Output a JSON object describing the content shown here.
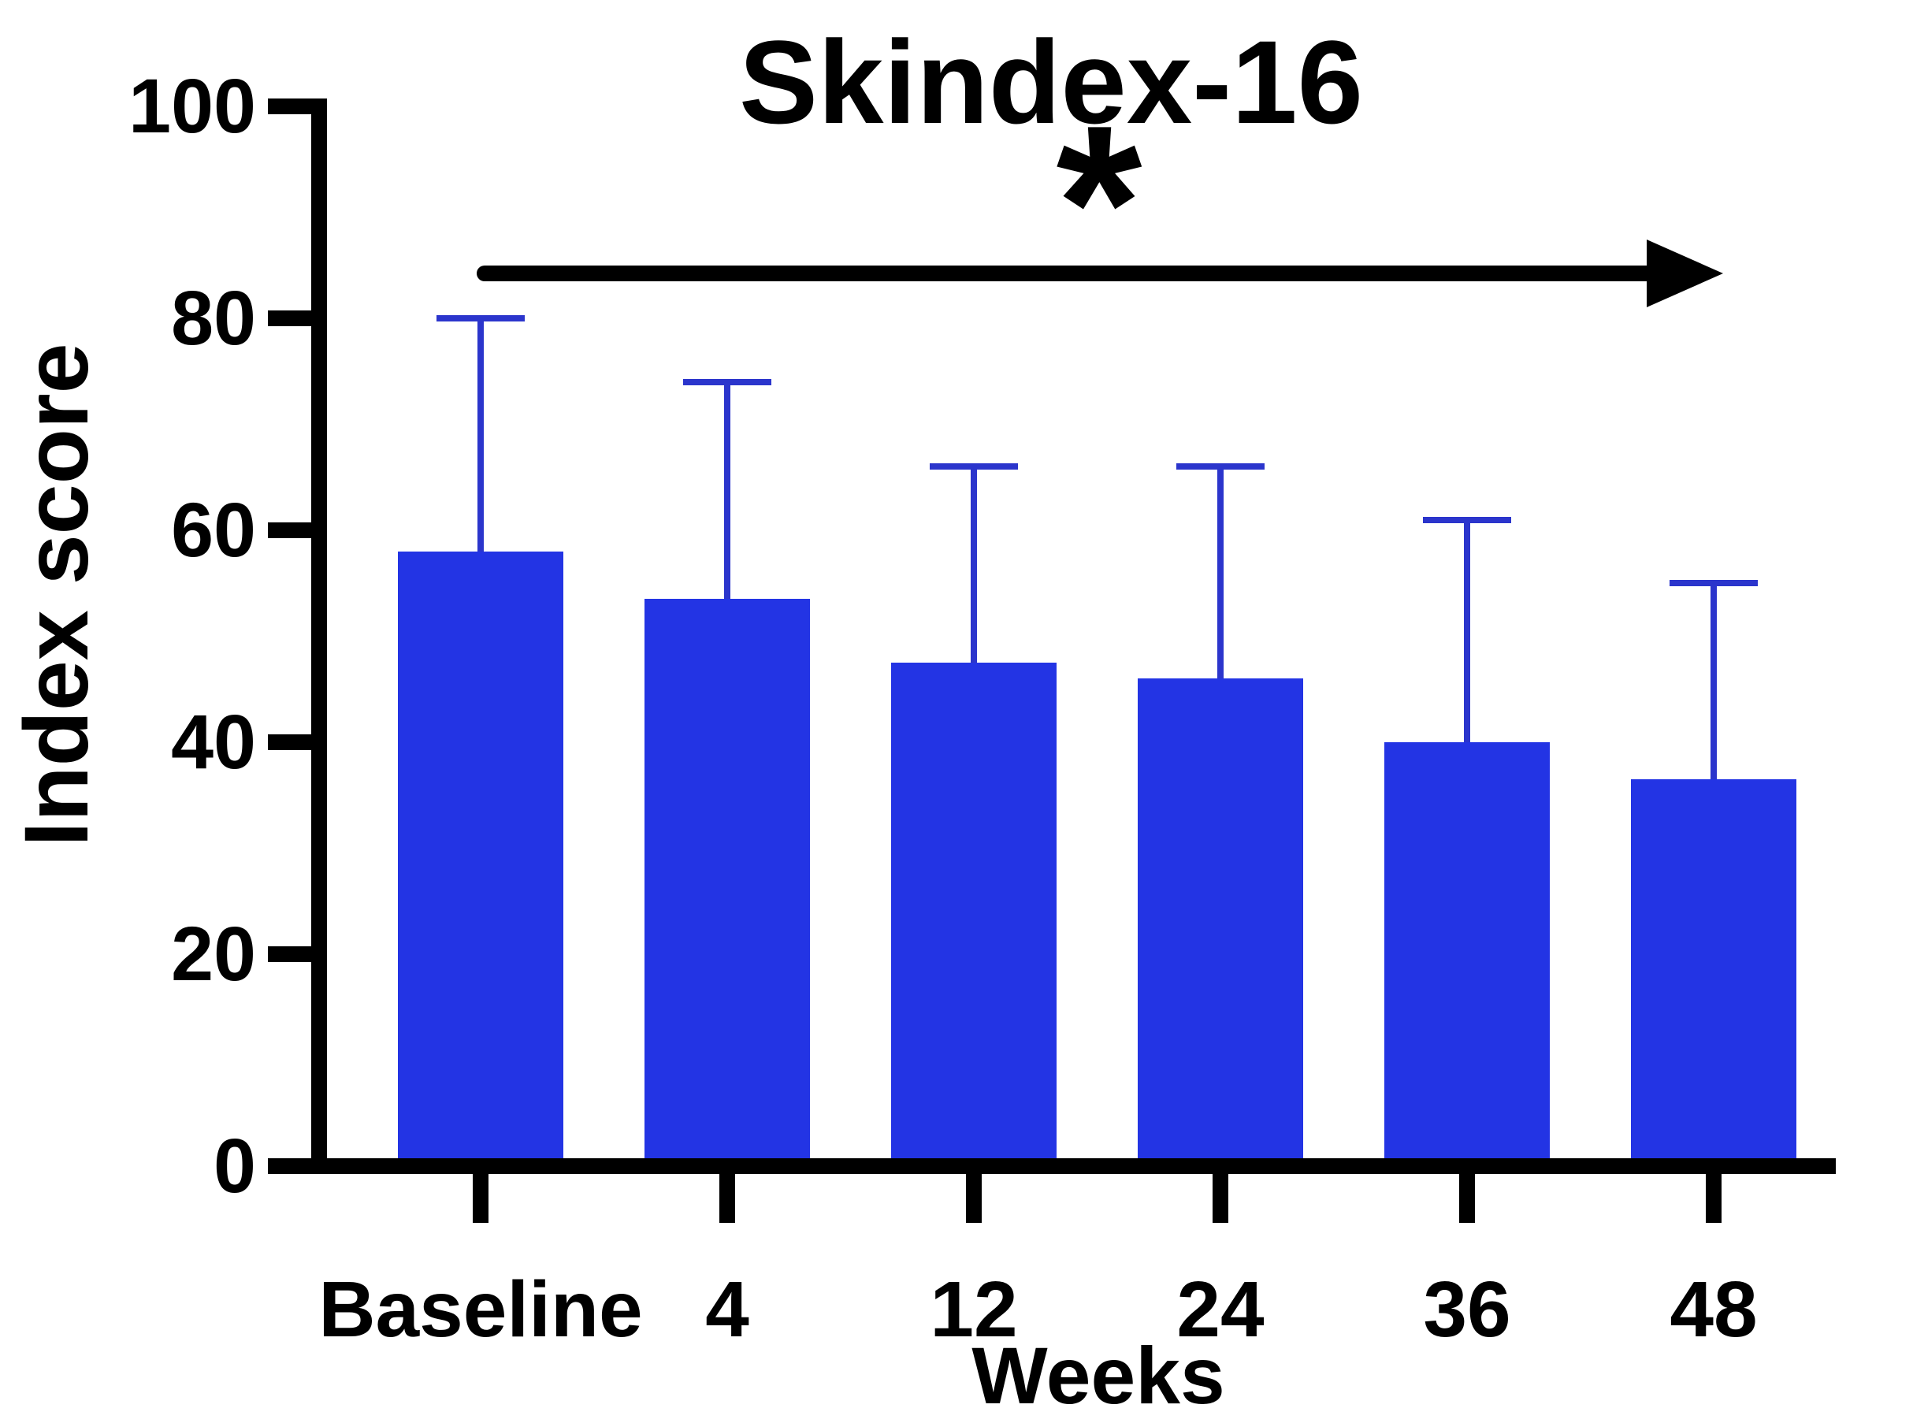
{
  "title": "Skindex-16",
  "significance": {
    "symbol": "*"
  },
  "y_axis": {
    "label": "Index score",
    "ticks": [
      100,
      80,
      60,
      40,
      20,
      0
    ]
  },
  "x_axis": {
    "label": "Weeks",
    "categories": [
      "Baseline",
      "4",
      "12",
      "24",
      "36",
      "48"
    ]
  },
  "colors": {
    "bar": "#2334E4",
    "error_bar": "#2B35CC",
    "axis": "#000000"
  },
  "chart_data": {
    "type": "bar",
    "title": "Skindex-16",
    "xlabel": "Weeks",
    "ylabel": "Index score",
    "categories": [
      "Baseline",
      "4",
      "12",
      "24",
      "36",
      "48"
    ],
    "values": [
      58,
      53.5,
      47.5,
      46,
      40,
      36.5
    ],
    "error_upper_top": [
      80,
      74,
      66,
      66,
      61,
      55
    ],
    "ylim": [
      0,
      100
    ],
    "yticks": [
      0,
      20,
      40,
      60,
      80,
      100
    ],
    "grid": false,
    "legend": false,
    "annotation": "* with horizontal arrow spanning Baseline to week 48"
  }
}
